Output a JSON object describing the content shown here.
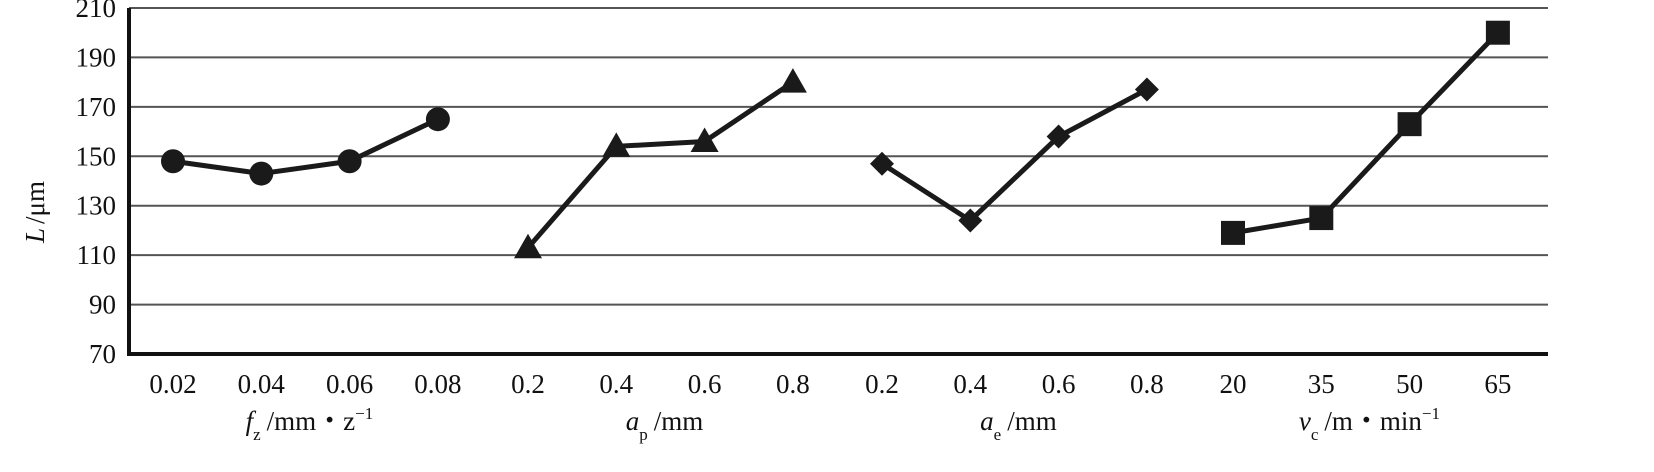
{
  "chart_data": {
    "type": "line",
    "ylabel_var": "L",
    "ylabel_unit": "/μm",
    "ylim": [
      70,
      210
    ],
    "yticks": [
      70,
      90,
      110,
      130,
      150,
      170,
      190,
      210
    ],
    "grid": true,
    "panels": [
      {
        "marker": "circle",
        "categories": [
          "0.02",
          "0.04",
          "0.06",
          "0.08"
        ],
        "values": [
          148,
          143,
          148,
          165
        ],
        "xlabel_var": "f",
        "xlabel_sub": "z",
        "xlabel_unit": "/mm・z",
        "xlabel_sup": "−1"
      },
      {
        "marker": "triangle",
        "categories": [
          "0.2",
          "0.4",
          "0.6",
          "0.8"
        ],
        "values": [
          113,
          154,
          156,
          180
        ],
        "xlabel_var": "a",
        "xlabel_sub": "p",
        "xlabel_unit": "/mm",
        "xlabel_sup": ""
      },
      {
        "marker": "diamond",
        "categories": [
          "0.2",
          "0.4",
          "0.6",
          "0.8"
        ],
        "values": [
          147,
          124,
          158,
          177
        ],
        "xlabel_var": "a",
        "xlabel_sub": "e",
        "xlabel_unit": "/mm",
        "xlabel_sup": ""
      },
      {
        "marker": "square",
        "categories": [
          "20",
          "35",
          "50",
          "65"
        ],
        "values": [
          119,
          125,
          163,
          200
        ],
        "xlabel_var": "v",
        "xlabel_sub": "c",
        "xlabel_unit": "/m・min",
        "xlabel_sup": "−1"
      }
    ]
  }
}
